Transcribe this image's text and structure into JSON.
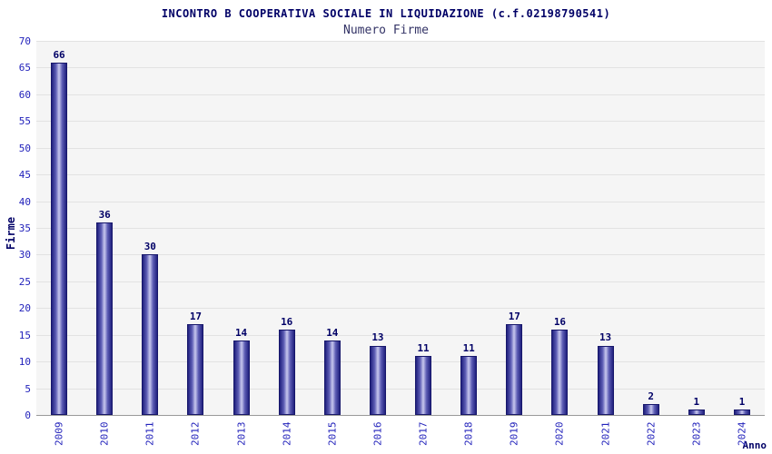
{
  "header": {
    "title": "INCONTRO B COOPERATIVA SOCIALE IN LIQUIDAZIONE (c.f.02198790541)",
    "subtitle": "Numero Firme"
  },
  "chart_data": {
    "type": "bar",
    "title": "INCONTRO B COOPERATIVA SOCIALE IN LIQUIDAZIONE (c.f.02198790541)",
    "subtitle": "Numero Firme",
    "xlabel": "Anno",
    "ylabel": "Firme",
    "categories": [
      "2009",
      "2010",
      "2011",
      "2012",
      "2013",
      "2014",
      "2015",
      "2016",
      "2017",
      "2018",
      "2019",
      "2020",
      "2021",
      "2022",
      "2023",
      "2024"
    ],
    "values": [
      66,
      36,
      30,
      17,
      14,
      16,
      14,
      13,
      11,
      11,
      17,
      16,
      13,
      2,
      1,
      1
    ],
    "ylim": [
      0,
      70
    ],
    "ytick_step": 5,
    "grid": "horizontal",
    "legend_position": "none",
    "colors": {
      "bar_dark": "#20207e",
      "bar_light": "#c8c8ee",
      "tick_label": "#2222bb",
      "title_text": "#000066",
      "plot_background": "#f5f5f5",
      "gridline": "#e2e2e2"
    }
  }
}
